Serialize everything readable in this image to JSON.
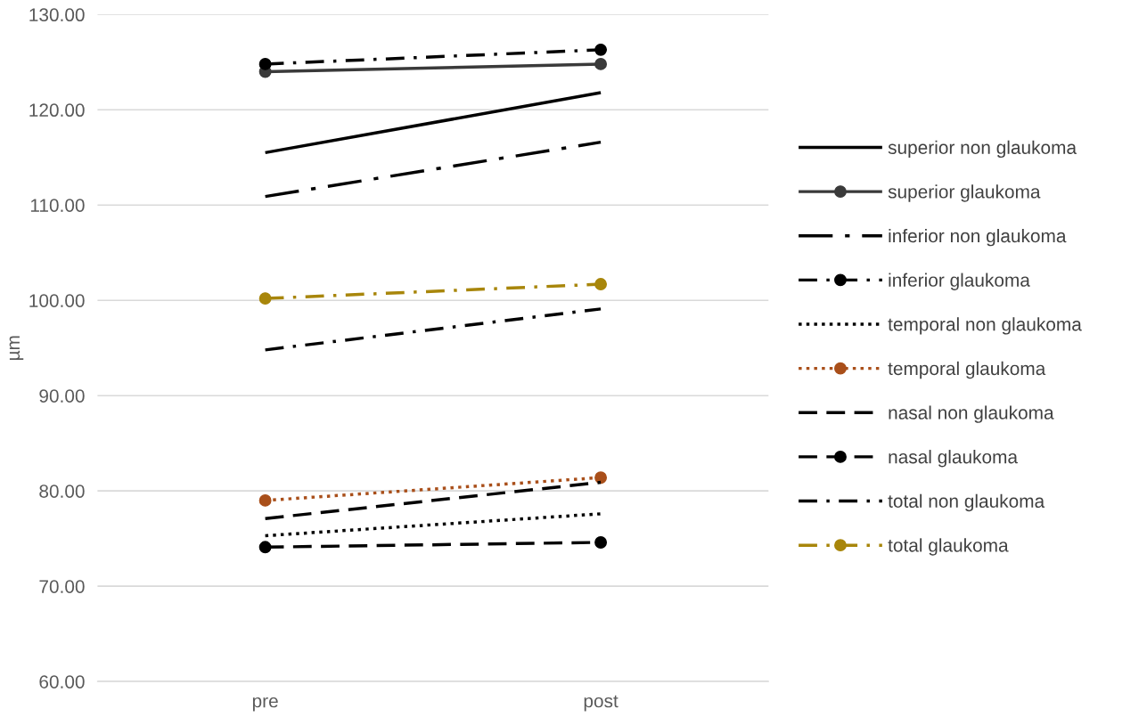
{
  "chart_data": {
    "type": "line",
    "ylabel": "µm",
    "categories": [
      "pre",
      "post"
    ],
    "ylim": [
      60,
      130
    ],
    "yticks": [
      {
        "value": 60,
        "label": "60.00"
      },
      {
        "value": 70,
        "label": "70.00"
      },
      {
        "value": 80,
        "label": "80.00"
      },
      {
        "value": 90,
        "label": "90.00"
      },
      {
        "value": 100,
        "label": "100.00"
      },
      {
        "value": 110,
        "label": "110.00"
      },
      {
        "value": 120,
        "label": "120.00"
      },
      {
        "value": 130,
        "label": "130.00"
      }
    ],
    "grid": "y",
    "legend": "right",
    "series": [
      {
        "name": "superior non glaukoma",
        "color": "#000000",
        "values": [
          115.5,
          121.8
        ],
        "line_style": "solid",
        "marker": "none"
      },
      {
        "name": "superior glaukoma",
        "color": "#3a3a3a",
        "values": [
          124.0,
          124.8
        ],
        "line_style": "solid",
        "marker": "circle"
      },
      {
        "name": "inferior non glaukoma",
        "color": "#000000",
        "values": [
          110.9,
          116.6
        ],
        "line_style": "longdashdot",
        "marker": "none"
      },
      {
        "name": "inferior glaukoma",
        "color": "#000000",
        "values": [
          124.8,
          126.3
        ],
        "line_style": "dashdot",
        "marker": "circle"
      },
      {
        "name": "temporal non glaukoma",
        "color": "#000000",
        "values": [
          75.3,
          77.6
        ],
        "line_style": "dotted",
        "marker": "none"
      },
      {
        "name": "temporal glaukoma",
        "color": "#a94f1a",
        "values": [
          79.0,
          81.4
        ],
        "line_style": "dotted",
        "marker": "circle"
      },
      {
        "name": "nasal non glaukoma",
        "color": "#000000",
        "values": [
          77.1,
          80.9
        ],
        "line_style": "dashed",
        "marker": "none"
      },
      {
        "name": "nasal glaukoma",
        "color": "#000000",
        "values": [
          74.1,
          74.6
        ],
        "line_style": "dashed",
        "marker": "circle"
      },
      {
        "name": "total non glaukoma",
        "color": "#000000",
        "values": [
          94.8,
          99.1
        ],
        "line_style": "dashdot",
        "marker": "none"
      },
      {
        "name": "total glaukoma",
        "color": "#a8860b",
        "values": [
          100.2,
          101.7
        ],
        "line_style": "dashdot",
        "marker": "circle"
      }
    ]
  }
}
